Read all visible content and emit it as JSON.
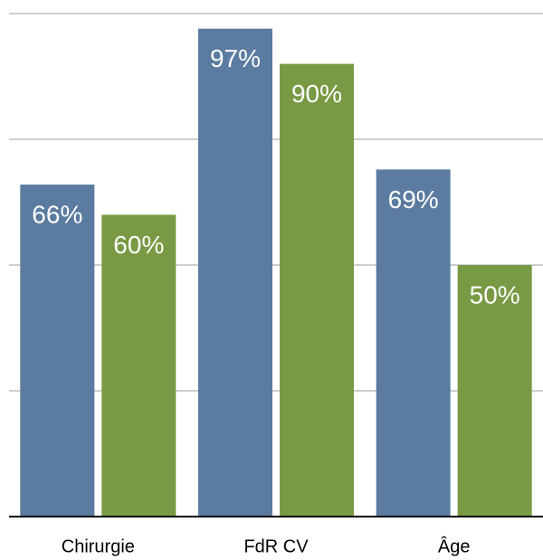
{
  "chart_data": {
    "type": "bar",
    "categories": [
      "Chirurgie",
      "FdR CV",
      "Âge"
    ],
    "series": [
      {
        "color": "#5b7ba0",
        "values": [
          66,
          97,
          69
        ],
        "value_labels": [
          "66%",
          "97%",
          "69%"
        ]
      },
      {
        "color": "#789a44",
        "values": [
          60,
          90,
          50
        ],
        "value_labels": [
          "60%",
          "90%",
          "50%"
        ]
      }
    ],
    "ylim": [
      0,
      100
    ],
    "yticks": [
      0,
      25,
      50,
      75,
      100
    ],
    "grid": true
  }
}
